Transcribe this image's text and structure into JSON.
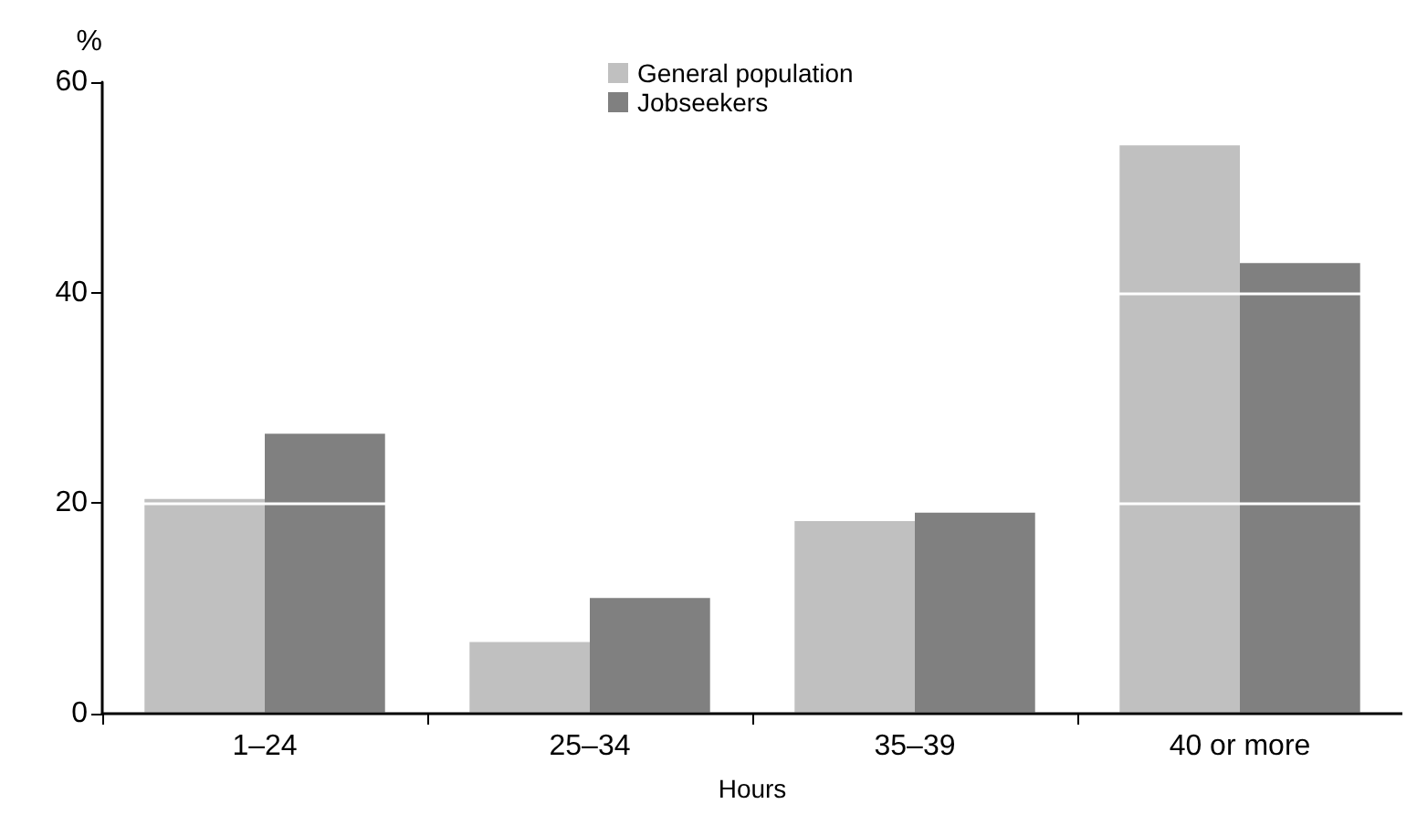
{
  "chart_data": {
    "type": "bar",
    "xlabel": "Hours",
    "ylabel": "%",
    "categories": [
      "1–24",
      "25–34",
      "35–39",
      "40 or more"
    ],
    "series": [
      {
        "name": "General population",
        "color": "#c0c0c0",
        "values": [
          20.4,
          6.8,
          18.3,
          54.0
        ]
      },
      {
        "name": "Jobseekers",
        "color": "#808080",
        "values": [
          26.6,
          11.0,
          19.1,
          42.8
        ]
      }
    ],
    "ylim": [
      0,
      60
    ],
    "yticks": [
      0,
      20,
      40,
      60
    ],
    "grid": "y",
    "legend": "top"
  }
}
